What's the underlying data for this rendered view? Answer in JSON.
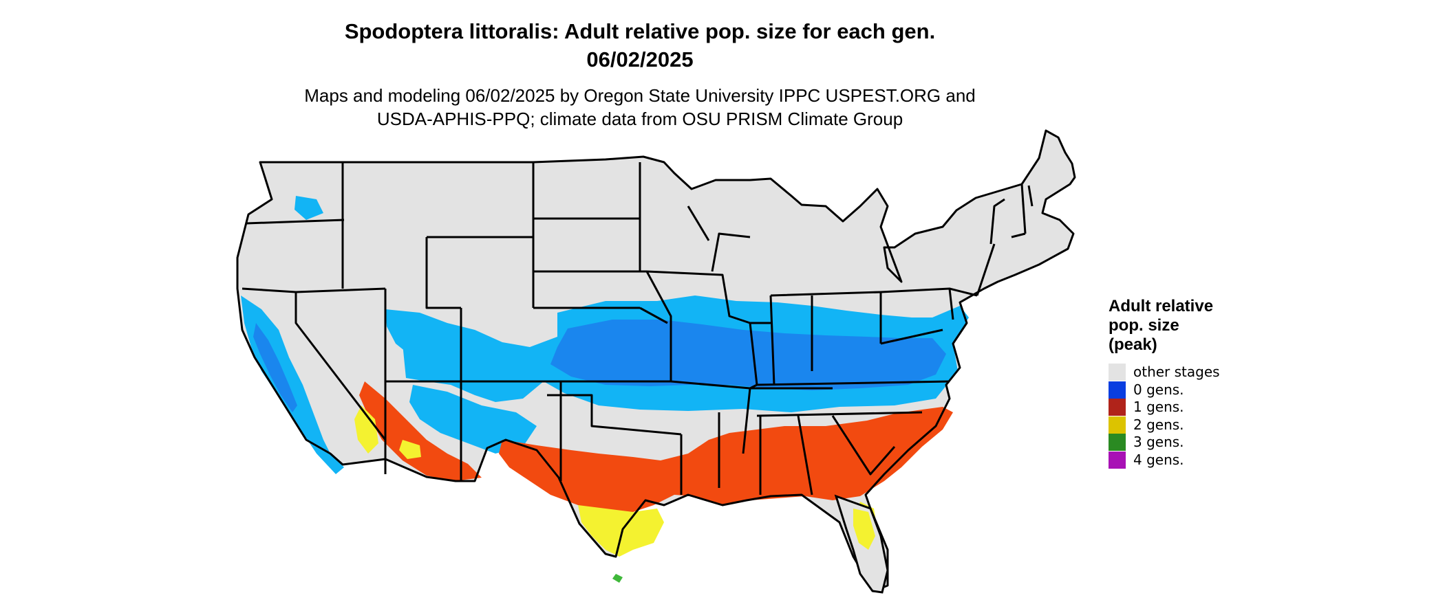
{
  "title": {
    "line1": "Spodoptera littoralis: Adult relative pop. size for each gen.",
    "line2": "06/02/2025"
  },
  "subtitle": {
    "line1": "Maps and modeling 06/02/2025 by Oregon State University IPPC USPEST.ORG and",
    "line2": "USDA-APHIS-PPQ; climate data from OSU PRISM Climate Group"
  },
  "legend": {
    "title_line1": "Adult relative",
    "title_line2": "pop. size",
    "title_line3": "(peak)",
    "items": [
      {
        "label": "other stages",
        "color": "#e3e3e3"
      },
      {
        "label": "0 gens.",
        "color": "#0a3ee0"
      },
      {
        "label": "1 gens.",
        "color": "#b0231a"
      },
      {
        "label": "2 gens.",
        "color": "#dcc300"
      },
      {
        "label": "3 gens.",
        "color": "#2a8a22"
      },
      {
        "label": "4 gens.",
        "color": "#a811b5"
      }
    ]
  },
  "map_colors": {
    "land": "#e3e3e3",
    "border": "#000000",
    "zero_gens_light": "#12b4f5",
    "zero_gens_dark": "#1a86ee",
    "one_gen": "#f24a10",
    "two_gens": "#f4f230",
    "three_gens": "#3fb83a"
  }
}
